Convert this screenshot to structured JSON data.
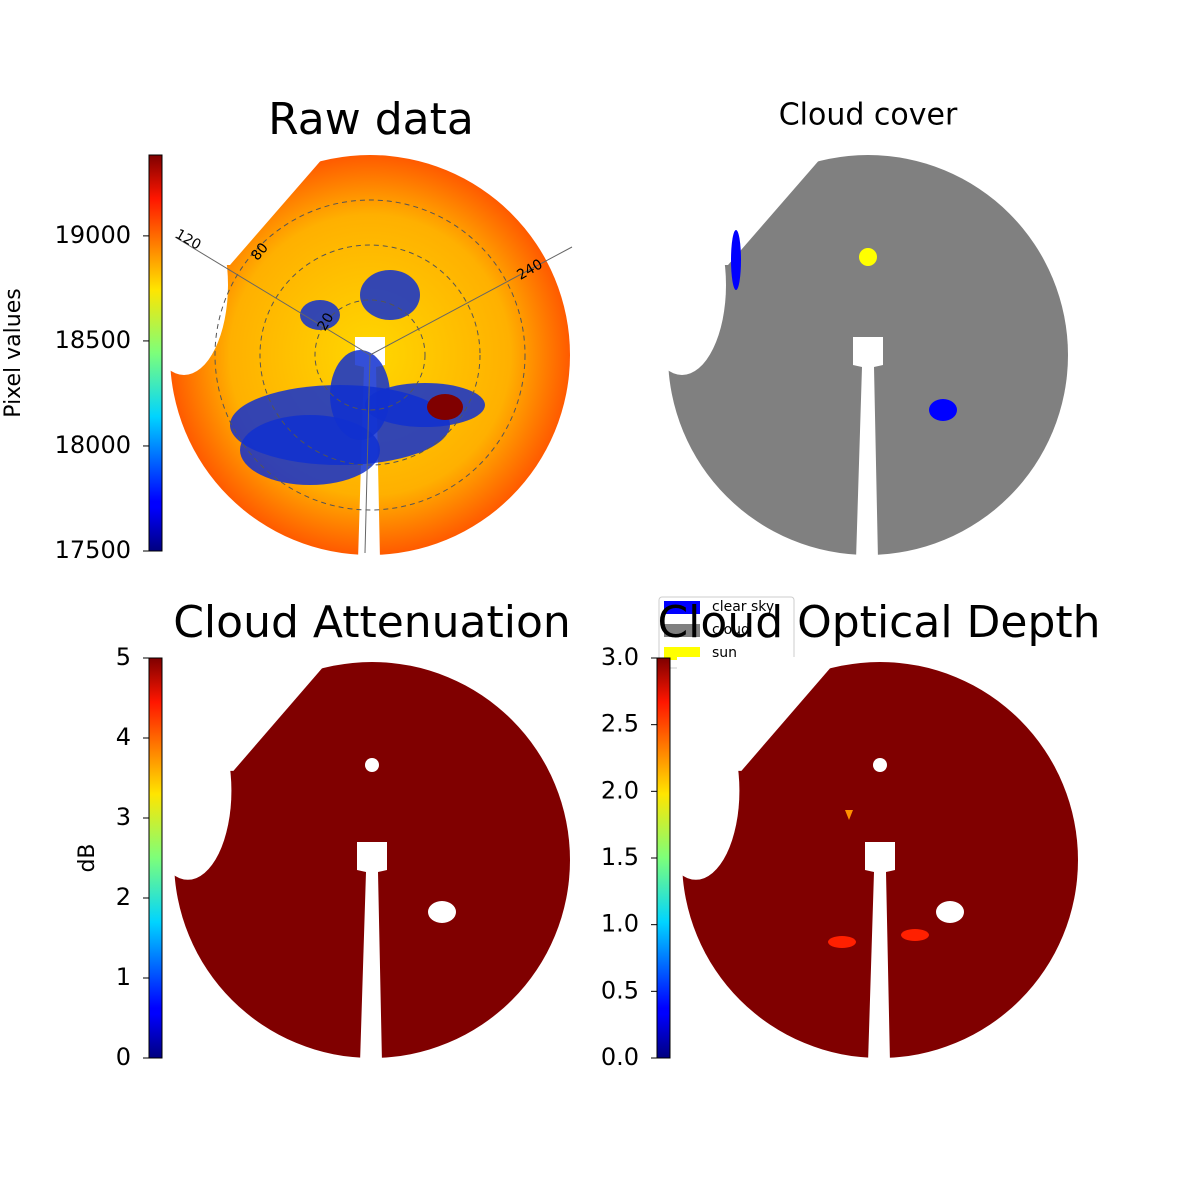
{
  "chart_data": [
    {
      "type": "image",
      "title": "Raw data",
      "colorbar_label": "Pixel values",
      "colormap": "jet",
      "ylim": [
        17500,
        19385
      ],
      "yticks": [
        17500,
        18000,
        18500,
        19000
      ],
      "annotations": [
        "120",
        "80",
        "240",
        "20"
      ]
    },
    {
      "type": "image",
      "title": "Cloud cover",
      "legend": [
        {
          "name": "clear sky",
          "color": "#0000ff"
        },
        {
          "name": "cloud",
          "color": "#808080"
        },
        {
          "name": "sun",
          "color": "#ffff00"
        }
      ]
    },
    {
      "type": "image",
      "title": "Cloud Attenuation",
      "colorbar_label": "dB",
      "colormap": "jet",
      "ylim": [
        0,
        5
      ],
      "yticks": [
        0,
        1,
        2,
        3,
        4,
        5
      ]
    },
    {
      "type": "image",
      "title": "Cloud Optical Depth",
      "colormap": "jet",
      "ylim": [
        0,
        3
      ],
      "yticks": [
        {
          "value": 0,
          "label": "0.0"
        },
        {
          "value": 0.5,
          "label": "0.5"
        },
        {
          "value": 1,
          "label": "1.0"
        },
        {
          "value": 1.5,
          "label": "1.5"
        },
        {
          "value": 2,
          "label": "2.0"
        },
        {
          "value": 2.5,
          "label": "2.5"
        },
        {
          "value": 3,
          "label": "3.0"
        }
      ]
    }
  ]
}
